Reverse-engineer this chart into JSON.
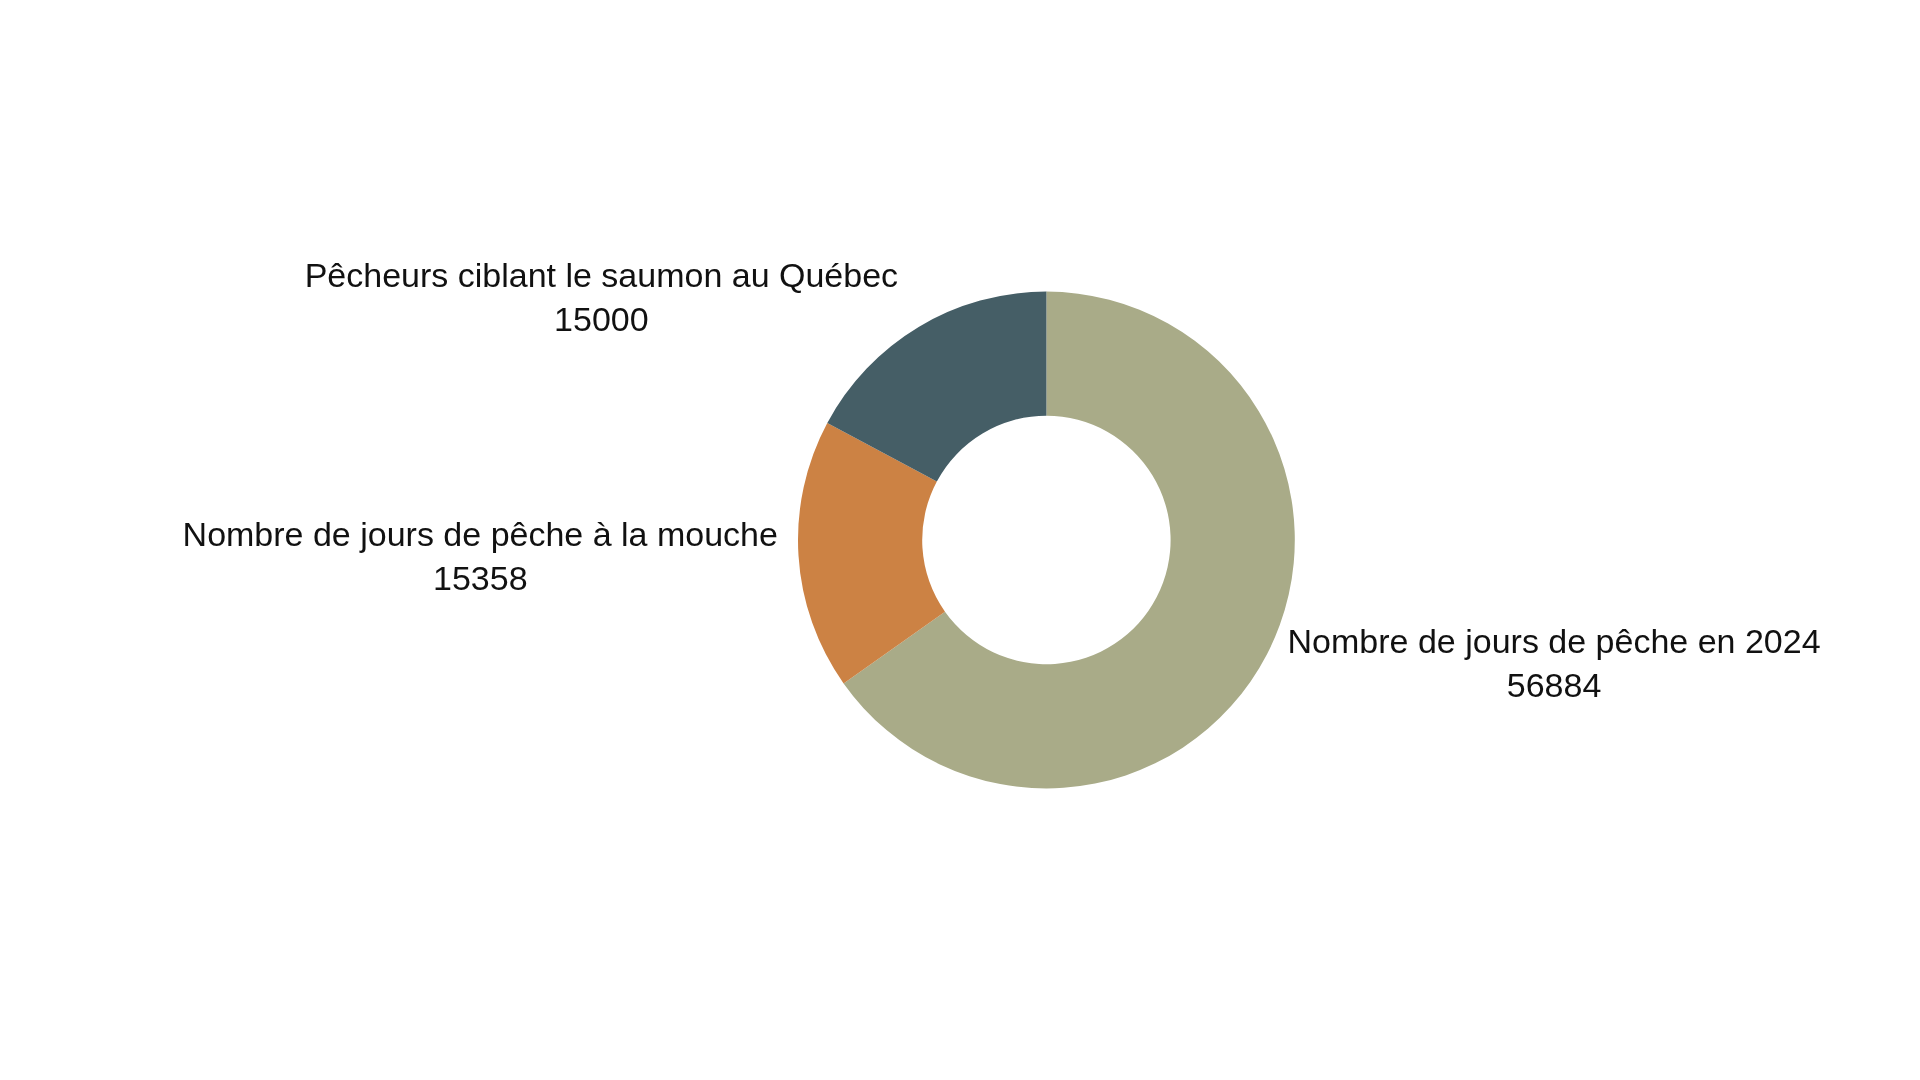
{
  "chart_data": {
    "type": "donut",
    "categories": [
      "Nombre de jours de pêche en 2024",
      "Nombre de jours de pêche à la mouche",
      "Pêcheurs ciblant le saumon au Québec"
    ],
    "values": [
      56884,
      15358,
      15000
    ],
    "colors": [
      "#a9ab88",
      "#cc8244",
      "#455e66"
    ],
    "data_labels": true,
    "legend": false
  }
}
